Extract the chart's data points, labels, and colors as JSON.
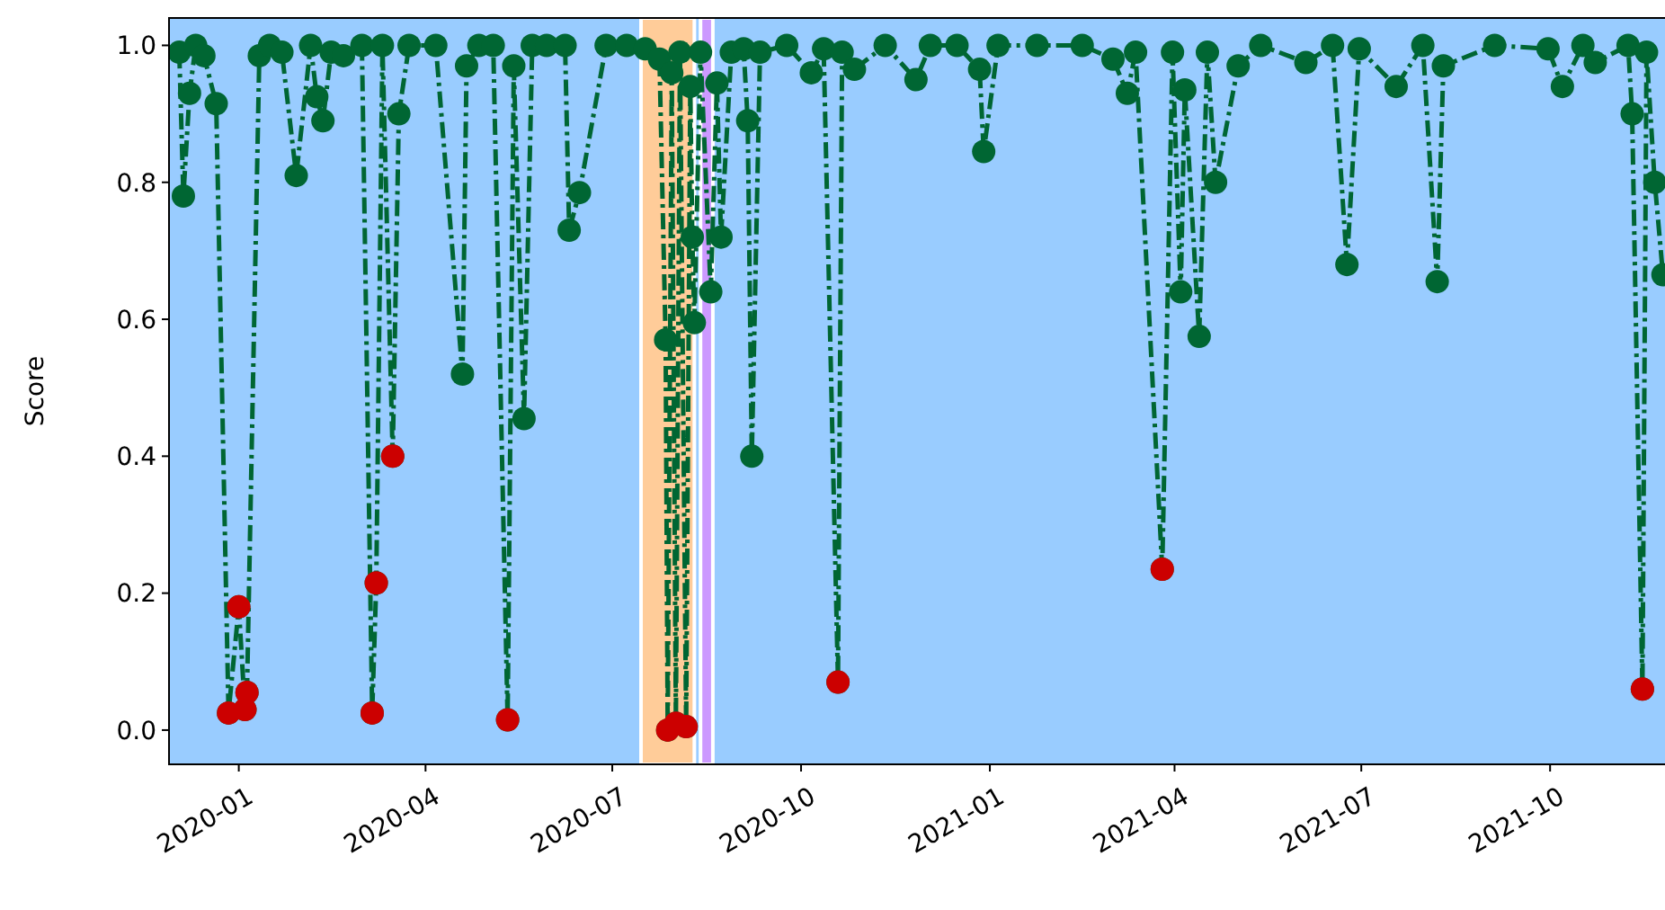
{
  "chart_data": {
    "type": "line",
    "ylabel": "Score",
    "xlim": [
      "2019-11-28",
      "2021-11-26"
    ],
    "ylim": [
      -0.05,
      1.04
    ],
    "xticks": [
      {
        "value": "2020-01-01",
        "label": "2020-01"
      },
      {
        "value": "2020-04-01",
        "label": "2020-04"
      },
      {
        "value": "2020-07-01",
        "label": "2020-07"
      },
      {
        "value": "2020-10-01",
        "label": "2020-10"
      },
      {
        "value": "2021-01-01",
        "label": "2021-01"
      },
      {
        "value": "2021-04-01",
        "label": "2021-04"
      },
      {
        "value": "2021-07-01",
        "label": "2021-07"
      },
      {
        "value": "2021-10-01",
        "label": "2021-10"
      }
    ],
    "yticks": [
      {
        "value": 0,
        "label": "0.0"
      },
      {
        "value": 0.2,
        "label": "0.2"
      },
      {
        "value": 0.4,
        "label": "0.4"
      },
      {
        "value": 0.6,
        "label": "0.6"
      },
      {
        "value": 0.8,
        "label": "0.8"
      },
      {
        "value": 1,
        "label": "1.0"
      }
    ],
    "grid": false,
    "marker": "circle",
    "line_style": "dashdot",
    "bands": [
      {
        "axis": "x",
        "from": "2019-11-28",
        "to": "2021-11-26",
        "color": "#99ccff"
      },
      {
        "axis": "x",
        "from": "2020-07-15",
        "to": "2020-08-10",
        "color": "#ffcc99"
      },
      {
        "axis": "x",
        "from": "2020-08-13",
        "to": "2020-08-19",
        "color": "#cc99ff"
      }
    ],
    "series": [
      {
        "color": "#006633",
        "x": [
          "2019-12-03",
          "2019-12-05",
          "2019-12-08",
          "2019-12-11",
          "2019-12-15",
          "2019-12-21",
          "2019-12-27",
          "2020-01-01",
          "2020-01-04",
          "2020-01-05",
          "2020-01-11",
          "2020-01-16",
          "2020-01-22",
          "2020-01-29",
          "2020-02-05",
          "2020-02-08",
          "2020-02-11",
          "2020-02-15",
          "2020-02-21",
          "2020-03-01",
          "2020-03-06",
          "2020-03-08",
          "2020-03-11",
          "2020-03-16",
          "2020-03-19",
          "2020-03-24",
          "2020-04-06",
          "2020-04-19",
          "2020-04-21",
          "2020-04-27",
          "2020-05-04",
          "2020-05-11",
          "2020-05-14",
          "2020-05-19",
          "2020-05-23",
          "2020-05-30",
          "2020-06-08",
          "2020-06-10",
          "2020-06-15",
          "2020-06-28",
          "2020-07-08",
          "2020-07-17",
          "2020-07-24",
          "2020-07-27",
          "2020-07-28",
          "2020-07-30",
          "2020-08-01",
          "2020-08-03",
          "2020-08-06",
          "2020-08-08",
          "2020-08-09",
          "2020-08-10",
          "2020-08-13",
          "2020-08-18",
          "2020-08-21",
          "2020-08-23",
          "2020-08-28",
          "2020-09-03",
          "2020-09-05",
          "2020-09-07",
          "2020-09-11",
          "2020-09-24",
          "2020-10-06",
          "2020-10-12",
          "2020-10-19",
          "2020-10-21",
          "2020-10-27",
          "2020-11-11",
          "2020-11-26",
          "2020-12-03",
          "2020-12-16",
          "2020-12-27",
          "2020-12-29",
          "2021-01-05",
          "2021-01-24",
          "2021-02-15",
          "2021-03-02",
          "2021-03-09",
          "2021-03-13",
          "2021-03-26",
          "2021-03-31",
          "2021-04-04",
          "2021-04-06",
          "2021-04-13",
          "2021-04-17",
          "2021-04-21",
          "2021-05-02",
          "2021-05-13",
          "2021-06-04",
          "2021-06-17",
          "2021-06-24",
          "2021-06-30",
          "2021-07-18",
          "2021-07-31",
          "2021-08-07",
          "2021-08-10",
          "2021-09-04",
          "2021-09-30",
          "2021-10-07",
          "2021-10-17",
          "2021-10-23",
          "2021-11-08",
          "2021-11-10",
          "2021-11-15",
          "2021-11-17",
          "2021-11-21",
          "2021-11-25"
        ],
        "values": [
          0.99,
          0.78,
          0.93,
          1.0,
          0.985,
          0.915,
          0.025,
          0.18,
          0.03,
          0.055,
          0.985,
          1.0,
          0.99,
          0.81,
          1.0,
          0.925,
          0.89,
          0.99,
          0.985,
          1.0,
          0.025,
          0.215,
          1.0,
          0.4,
          0.9,
          1.0,
          1.0,
          0.52,
          0.97,
          1.0,
          1.0,
          0.015,
          0.97,
          0.455,
          1.0,
          1.0,
          1.0,
          0.73,
          0.785,
          1.0,
          1.0,
          0.995,
          0.98,
          0.57,
          0.0,
          0.96,
          0.01,
          0.99,
          0.005,
          0.94,
          0.72,
          0.595,
          0.99,
          0.64,
          0.945,
          0.72,
          0.99,
          0.995,
          0.89,
          0.4,
          0.99,
          1.0,
          0.96,
          0.995,
          0.07,
          0.99,
          0.965,
          1.0,
          0.95,
          1.0,
          1.0,
          0.965,
          0.845,
          1.0,
          1.0,
          1.0,
          0.98,
          0.93,
          0.99,
          0.235,
          0.99,
          0.64,
          0.935,
          0.575,
          0.99,
          0.8,
          0.97,
          1.0,
          0.975,
          1.0,
          0.68,
          0.995,
          0.94,
          1.0,
          0.655,
          0.97,
          1.0,
          0.995,
          0.94,
          1.0,
          0.975,
          1.0,
          0.9,
          0.06,
          0.99,
          0.8,
          0.665
        ]
      },
      {
        "type": "scatter",
        "color": "#cc0000",
        "x": [
          "2019-12-27",
          "2020-01-01",
          "2020-01-04",
          "2020-01-05",
          "2020-03-06",
          "2020-03-08",
          "2020-03-16",
          "2020-05-11",
          "2020-07-28",
          "2020-08-01",
          "2020-08-06",
          "2020-10-19",
          "2021-03-26",
          "2021-11-15"
        ],
        "values": [
          0.025,
          0.18,
          0.03,
          0.055,
          0.025,
          0.215,
          0.4,
          0.015,
          0.0,
          0.01,
          0.005,
          0.07,
          0.235,
          0.06
        ]
      }
    ]
  }
}
